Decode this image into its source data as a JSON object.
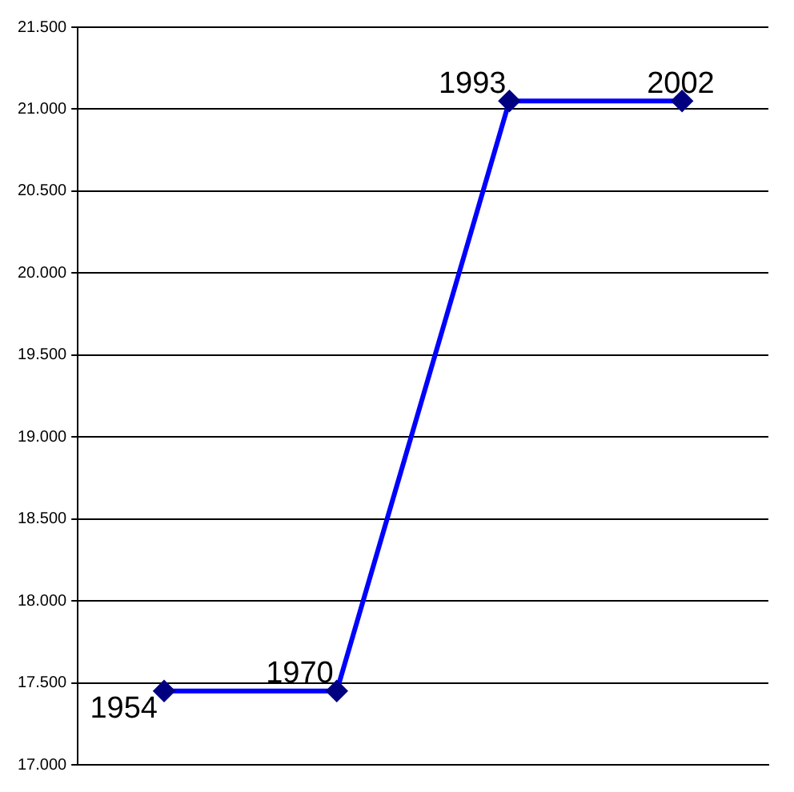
{
  "chart_data": {
    "type": "line",
    "categories": [
      null,
      null,
      null,
      null
    ],
    "series": [
      {
        "color": "#0000ff",
        "values": [
          17450,
          17450,
          21050,
          21050
        ]
      }
    ],
    "annotations": [
      "1954",
      "1970",
      "1993",
      "2002"
    ],
    "ylim": [
      17000,
      21500
    ],
    "yticks": [
      {
        "value": 17000,
        "label": "17.000"
      },
      {
        "value": 17500,
        "label": "17.500"
      },
      {
        "value": 18000,
        "label": "18.000"
      },
      {
        "value": 18500,
        "label": "18.500"
      },
      {
        "value": 19000,
        "label": "19.000"
      },
      {
        "value": 19500,
        "label": "19.500"
      },
      {
        "value": 20000,
        "label": "20.000"
      },
      {
        "value": 20500,
        "label": "20.500"
      },
      {
        "value": 21000,
        "label": "21.000"
      },
      {
        "value": 21500,
        "label": "21.500"
      }
    ],
    "grid": "y",
    "legend": false,
    "marker": "diamond",
    "line_style": "solid"
  }
}
